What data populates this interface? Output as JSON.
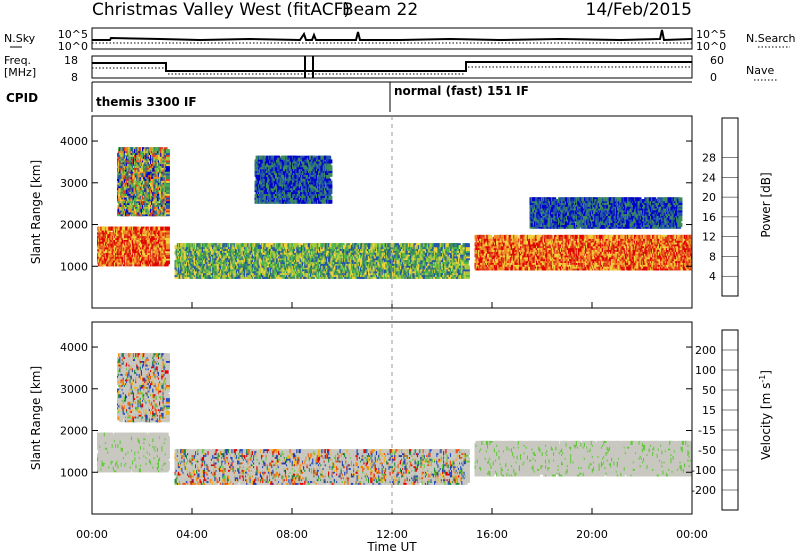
{
  "header": {
    "station": "Christmas Valley West (fitACF)",
    "beam": "Beam 22",
    "date": "14/Feb/2015"
  },
  "top_panels": {
    "nsky_label": "N.Sky",
    "nsearch_label": "N.Search",
    "noise_tick_high": "10^5",
    "noise_tick_low": "10^0",
    "freq_label": "Freq.",
    "freq_unit": "[MHz]",
    "freq_ticks": [
      "18",
      "8"
    ],
    "nave_label": "Nave",
    "nave_ticks": [
      "60",
      "0"
    ],
    "cpid_label": "CPID",
    "cpid_left": "themis 3300 IF",
    "cpid_right": "normal (fast) 151 IF"
  },
  "chart_data": [
    {
      "type": "heatmap",
      "title": "",
      "xlabel": "Time UT",
      "ylabel": "Slant Range [km]",
      "x_ticks": [
        "00:00",
        "04:00",
        "08:00",
        "12:00",
        "16:00",
        "20:00",
        "00:00"
      ],
      "y_ticks": [
        1000,
        2000,
        3000,
        4000
      ],
      "colorbar_label": "Power [dB]",
      "colorbar_ticks": [
        4,
        8,
        12,
        16,
        20,
        24,
        28
      ],
      "colorbar_colors": [
        "#0000cc",
        "#2255aa",
        "#3c8c5a",
        "#4cb84c",
        "#a8c83c",
        "#f0d23c",
        "#f08c28",
        "#e03c1e",
        "#e10000"
      ],
      "echo_regions": [
        {
          "t0": 0.2,
          "t1": 3.0,
          "r0": 1000,
          "r1": 1900,
          "level": "high"
        },
        {
          "t0": 3.3,
          "t1": 15.0,
          "r0": 700,
          "r1": 1500,
          "level": "mid"
        },
        {
          "t0": 15.3,
          "t1": 24.0,
          "r0": 900,
          "r1": 1700,
          "level": "high"
        },
        {
          "t0": 1.0,
          "t1": 3.0,
          "r0": 2200,
          "r1": 3800,
          "level": "mixed"
        },
        {
          "t0": 6.5,
          "t1": 9.5,
          "r0": 2500,
          "r1": 3600,
          "level": "low"
        },
        {
          "t0": 17.5,
          "t1": 23.5,
          "r0": 1900,
          "r1": 2600,
          "level": "low"
        }
      ]
    },
    {
      "type": "heatmap",
      "title": "",
      "xlabel": "Time UT",
      "ylabel": "Slant Range [km]",
      "x_ticks": [
        "00:00",
        "04:00",
        "08:00",
        "12:00",
        "16:00",
        "20:00",
        "00:00"
      ],
      "y_ticks": [
        1000,
        2000,
        3000,
        4000
      ],
      "colorbar_label": "Velocity [m s^-1]",
      "colorbar_ticks": [
        200,
        100,
        50,
        15,
        -15,
        -50,
        -100,
        -200
      ],
      "colorbar_colors": [
        "#1e3cb4",
        "#2850c8",
        "#1e8c3c",
        "#64c83c",
        "#c8c8c0",
        "#f0b41e",
        "#f08c14",
        "#f05014",
        "#e60000"
      ],
      "echo_regions": [
        {
          "t0": 0.2,
          "t1": 3.0,
          "r0": 1000,
          "r1": 1900,
          "level": "ground"
        },
        {
          "t0": 3.3,
          "t1": 15.0,
          "r0": 700,
          "r1": 1500,
          "level": "mixed"
        },
        {
          "t0": 15.3,
          "t1": 24.0,
          "r0": 900,
          "r1": 1700,
          "level": "ground"
        },
        {
          "t0": 1.0,
          "t1": 3.0,
          "r0": 2200,
          "r1": 3800,
          "level": "mixed"
        }
      ]
    }
  ]
}
